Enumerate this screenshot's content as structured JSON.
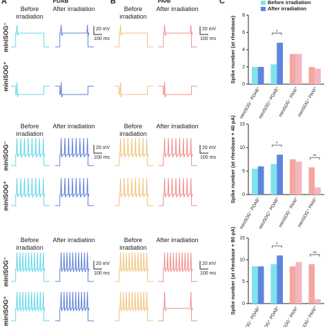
{
  "figure": {
    "panel_labels": [
      "A",
      "B",
      "C"
    ],
    "panel_titles": [
      "PDAB",
      "PANI"
    ],
    "before": "Before irradiation",
    "after": "After irradiation",
    "row_labels": [
      "miniSOG⁻",
      "miniSOG⁺"
    ],
    "scale_mv": "20 mV",
    "scale_ms": "100 ms"
  },
  "chart_data": [
    {
      "type": "bar",
      "y_label": "Spike number (at rheobase)",
      "categories": [
        "miniSOG⁻ PDAB⁺",
        "miniSOG⁺ PDAB⁺",
        "miniSOG⁻ PANI⁺",
        "miniSOG⁺ PANI⁺"
      ],
      "series": [
        {
          "name": "Before irradiation",
          "color": "#7fe3ec",
          "colors": [
            "#7fe3ec",
            "#7fe3ec",
            "#f4a7a0",
            "#f4a7a0"
          ],
          "values": [
            2,
            2.3,
            3.5,
            2
          ]
        },
        {
          "name": "After irradiation",
          "color": "#5b86e0",
          "colors": [
            "#5b86e0",
            "#5b86e0",
            "#f3b6c0",
            "#f3b6c0"
          ],
          "values": [
            2,
            4.8,
            3.5,
            1.8
          ]
        }
      ],
      "ylim": [
        0,
        8
      ],
      "yticks": [
        0,
        2,
        4,
        6,
        8
      ],
      "annotations": [
        "*"
      ],
      "legend": "top"
    },
    {
      "type": "bar",
      "y_label": "Spike number (at rheobase + 40 pA)",
      "categories": [
        "miniSOG⁻ PDAB⁺",
        "miniSOG⁺ PDAB⁺",
        "miniSOG⁻ PANI⁺",
        "miniSOG⁺ PANI⁺"
      ],
      "series": [
        {
          "name": "Before irradiation",
          "color": "#7fe3ec",
          "colors": [
            "#7fe3ec",
            "#7fe3ec",
            "#f4a7a0",
            "#f4a7a0"
          ],
          "values": [
            5.5,
            6.5,
            7.5,
            5.8
          ]
        },
        {
          "name": "After irradiation",
          "color": "#5b86e0",
          "colors": [
            "#5b86e0",
            "#5b86e0",
            "#f3b6c0",
            "#f3b6c0"
          ],
          "values": [
            6,
            8.5,
            7,
            1.5
          ]
        }
      ],
      "ylim": [
        0,
        15
      ],
      "yticks": [
        0,
        5,
        10,
        15
      ],
      "annotations": [
        "*",
        "**"
      ]
    },
    {
      "type": "bar",
      "y_label": "Spike number (at rheobase + 80 pA)",
      "categories": [
        "miniSOG⁻ PDAB⁺",
        "miniSOG⁺ PDAB⁺",
        "miniSOG⁻ PANI⁺",
        "miniSOG⁺ PANI⁺"
      ],
      "series": [
        {
          "name": "Before irradiation",
          "color": "#7fe3ec",
          "colors": [
            "#7fe3ec",
            "#7fe3ec",
            "#f4a7a0",
            "#f4a7a0"
          ],
          "values": [
            8.5,
            9,
            8.5,
            9
          ]
        },
        {
          "name": "After irradiation",
          "color": "#5b86e0",
          "colors": [
            "#5b86e0",
            "#5b86e0",
            "#f3b6c0",
            "#f3b6c0"
          ],
          "values": [
            8.5,
            11,
            9.5,
            1
          ]
        }
      ],
      "ylim": [
        0,
        15
      ],
      "yticks": [
        0,
        5,
        10,
        15
      ],
      "annotations": [
        "*",
        "**"
      ]
    }
  ]
}
